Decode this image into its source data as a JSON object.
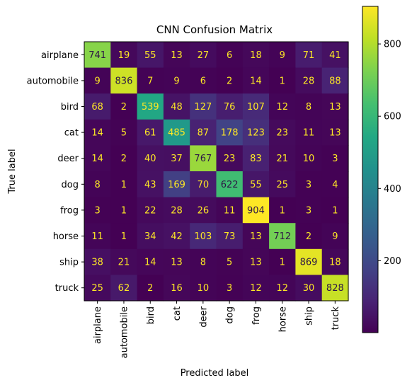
{
  "chart_data": {
    "type": "heatmap",
    "title": "CNN Confusion Matrix",
    "xlabel": "Predicted label",
    "ylabel": "True label",
    "x_categories": [
      "airplane",
      "automobile",
      "bird",
      "cat",
      "deer",
      "dog",
      "frog",
      "horse",
      "ship",
      "truck"
    ],
    "y_categories": [
      "airplane",
      "automobile",
      "bird",
      "cat",
      "deer",
      "dog",
      "frog",
      "horse",
      "ship",
      "truck"
    ],
    "values": [
      [
        741,
        19,
        55,
        13,
        27,
        6,
        18,
        9,
        71,
        41
      ],
      [
        9,
        836,
        7,
        9,
        6,
        2,
        14,
        1,
        28,
        88
      ],
      [
        68,
        2,
        539,
        48,
        127,
        76,
        107,
        12,
        8,
        13
      ],
      [
        14,
        5,
        61,
        485,
        87,
        178,
        123,
        23,
        11,
        13
      ],
      [
        14,
        2,
        40,
        37,
        767,
        23,
        83,
        21,
        10,
        3
      ],
      [
        8,
        1,
        43,
        169,
        70,
        622,
        55,
        25,
        3,
        4
      ],
      [
        3,
        1,
        22,
        28,
        26,
        11,
        904,
        1,
        3,
        1
      ],
      [
        11,
        1,
        34,
        42,
        103,
        73,
        13,
        712,
        2,
        9
      ],
      [
        38,
        21,
        14,
        13,
        8,
        5,
        13,
        1,
        869,
        18
      ],
      [
        25,
        62,
        2,
        16,
        10,
        3,
        12,
        12,
        30,
        828
      ]
    ],
    "colormap": "viridis",
    "vmin": 1,
    "vmax": 904,
    "colorbar_ticks": [
      200,
      400,
      600,
      800
    ],
    "grid": false
  }
}
